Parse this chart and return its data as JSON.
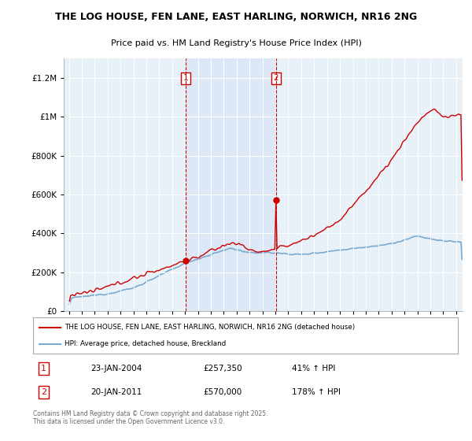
{
  "title_line1": "THE LOG HOUSE, FEN LANE, EAST HARLING, NORWICH, NR16 2NG",
  "title_line2": "Price paid vs. HM Land Registry's House Price Index (HPI)",
  "legend_label1": "THE LOG HOUSE, FEN LANE, EAST HARLING, NORWICH, NR16 2NG (detached house)",
  "legend_label2": "HPI: Average price, detached house, Breckland",
  "sale1_date": "23-JAN-2004",
  "sale1_price": 257350,
  "sale1_hpi": "41% ↑ HPI",
  "sale2_date": "20-JAN-2011",
  "sale2_price": 570000,
  "sale2_hpi": "178% ↑ HPI",
  "footer": "Contains HM Land Registry data © Crown copyright and database right 2025.\nThis data is licensed under the Open Government Licence v3.0.",
  "line_color_house": "#cc0000",
  "line_color_hpi": "#7aaad0",
  "background_color": "#ffffff",
  "plot_bg_color": "#e8f0f8",
  "shade_color": "#dce8f5",
  "ylim": [
    0,
    1300000
  ],
  "yticks": [
    0,
    200000,
    400000,
    600000,
    800000,
    1000000,
    1200000
  ],
  "xlabel_start": 1995,
  "xlabel_end": 2025
}
